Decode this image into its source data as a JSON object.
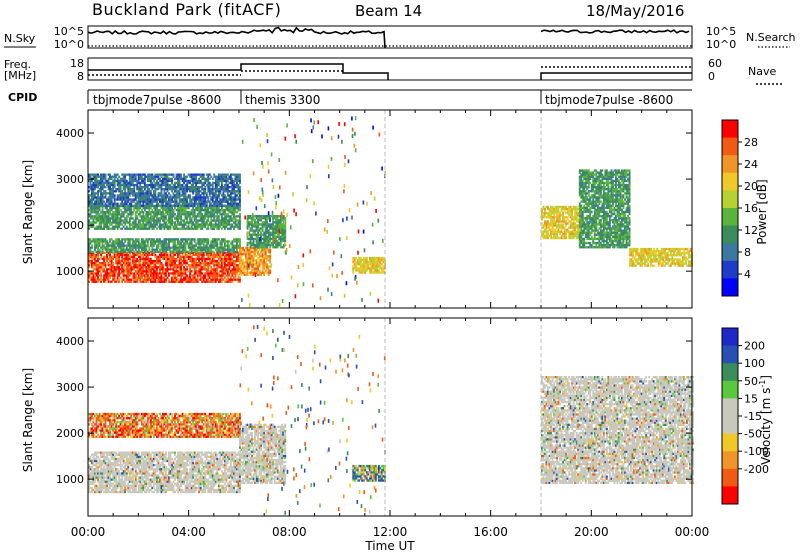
{
  "header": {
    "station": "Buckland Park (fitACF)",
    "beam": "Beam 14",
    "date": "18/May/2016"
  },
  "status_panels": {
    "nsky_label": "N.Sky",
    "nsky_ticks": [
      "10^5",
      "10^0"
    ],
    "nsearch_label": "N.Search",
    "nsearch_ticks": [
      "10^5",
      "10^0"
    ],
    "freq_label_top": "Freq.",
    "freq_label_bottom": "[MHz]",
    "freq_ticks": [
      "18",
      "8"
    ],
    "nave_label": "Nave",
    "nave_ticks": [
      "60",
      "0"
    ],
    "cpid_label": "CPID",
    "cpid_segments": [
      {
        "name": "tbjmode7pulse -8600",
        "start_hour": 0,
        "end_hour": 6
      },
      {
        "name": "themis 3300",
        "start_hour": 6,
        "end_hour": 11.8
      },
      {
        "name": "tbjmode7pulse -8600",
        "start_hour": 18,
        "end_hour": 24
      }
    ]
  },
  "colors": {
    "power_scale": [
      "#0000ff",
      "#1e3cc8",
      "#3c78a0",
      "#3a8c5a",
      "#5ab43c",
      "#b4d232",
      "#f0c828",
      "#f09628",
      "#f05a14",
      "#ff0000"
    ],
    "velocity_scale": [
      "#ff0000",
      "#f05a14",
      "#f09628",
      "#f0c828",
      "#c8c8be",
      "#c8c8be",
      "#5ac83c",
      "#3a8c5a",
      "#2850b4",
      "#1e28c8"
    ],
    "ground_scatter": "#c8c8be"
  },
  "chart_data": [
    {
      "type": "heatmap",
      "name": "power",
      "title": "",
      "xlabel": "",
      "ylabel": "Slant Range [km]",
      "x_unit": "hour UT",
      "xlim": [
        0,
        24
      ],
      "ylim": [
        200,
        4500
      ],
      "y_ticks": [
        1000,
        2000,
        3000,
        4000
      ],
      "colorbar": {
        "label": "Power [dB]",
        "range": [
          0,
          32
        ],
        "ticks": [
          4,
          8,
          12,
          16,
          20,
          24,
          28
        ]
      },
      "data_gap_hours": [
        11.8,
        18
      ],
      "regions": [
        {
          "start_hour": 0,
          "end_hour": 6,
          "range_low": 750,
          "range_high": 1400,
          "power": 28
        },
        {
          "start_hour": 0,
          "end_hour": 6,
          "range_low": 1400,
          "range_high": 1700,
          "power": 12
        },
        {
          "start_hour": 0,
          "end_hour": 6,
          "range_low": 1900,
          "range_high": 2400,
          "power": 12
        },
        {
          "start_hour": 0,
          "end_hour": 6,
          "range_low": 2400,
          "range_high": 3100,
          "power": 8
        },
        {
          "start_hour": 6,
          "end_hour": 7.2,
          "range_low": 900,
          "range_high": 1500,
          "power": 24
        },
        {
          "start_hour": 6.3,
          "end_hour": 7.8,
          "range_low": 1500,
          "range_high": 2200,
          "power": 12
        },
        {
          "start_hour": 10.5,
          "end_hour": 11.8,
          "range_low": 950,
          "range_high": 1300,
          "power": 20
        },
        {
          "start_hour": 18,
          "end_hour": 19.6,
          "range_low": 1700,
          "range_high": 2400,
          "power": 20
        },
        {
          "start_hour": 19.5,
          "end_hour": 21.5,
          "range_low": 1500,
          "range_high": 3200,
          "power": 12
        },
        {
          "start_hour": 21.5,
          "end_hour": 24,
          "range_low": 1100,
          "range_high": 1500,
          "power": 20
        }
      ]
    },
    {
      "type": "heatmap",
      "name": "velocity",
      "title": "",
      "xlabel": "Time UT",
      "ylabel": "Slant Range [km]",
      "x_unit": "hour UT",
      "xlim": [
        0,
        24
      ],
      "ylim": [
        200,
        4500
      ],
      "x_ticks": [
        "00:00",
        "04:00",
        "08:00",
        "12:00",
        "16:00",
        "20:00",
        "00:00"
      ],
      "y_ticks": [
        1000,
        2000,
        3000,
        4000
      ],
      "colorbar": {
        "label_prefix": "Velocity [m s",
        "label_exponent": "-1",
        "label_suffix": "]",
        "ticks": [
          200,
          100,
          50,
          15,
          -15,
          -50,
          -100,
          -200
        ]
      },
      "data_gap_hours": [
        11.8,
        18
      ],
      "regions": [
        {
          "start_hour": 0,
          "end_hour": 6,
          "range_low": 700,
          "range_high": 1600,
          "velocity": 0
        },
        {
          "start_hour": 0,
          "end_hour": 6,
          "range_low": 1900,
          "range_high": 2400,
          "velocity": -100
        },
        {
          "start_hour": 6,
          "end_hour": 7.8,
          "range_low": 900,
          "range_high": 2200,
          "velocity": 0
        },
        {
          "start_hour": 10.5,
          "end_hour": 11.8,
          "range_low": 950,
          "range_high": 1300,
          "velocity": 60
        },
        {
          "start_hour": 18,
          "end_hour": 24,
          "range_low": 900,
          "range_high": 3200,
          "velocity": 0
        }
      ]
    }
  ]
}
